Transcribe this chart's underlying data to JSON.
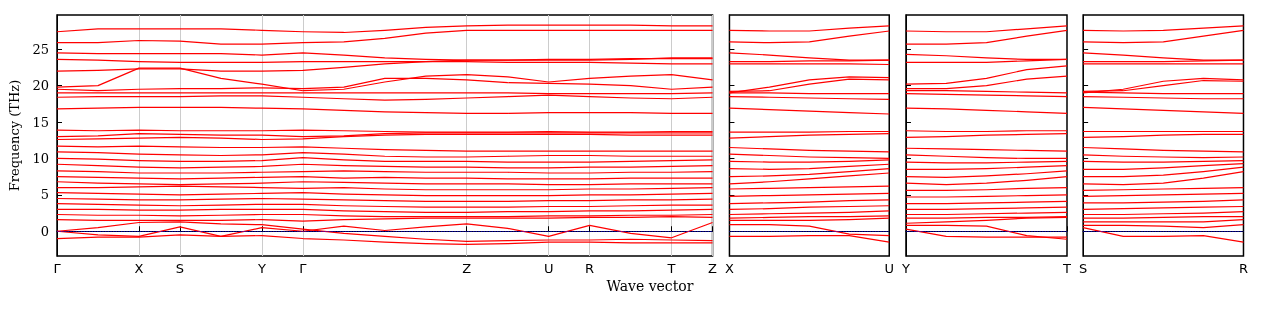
{
  "chart_data": [
    {
      "type": "line",
      "ylabel": "Frequency (THz)",
      "xlabel": "Wave vector",
      "color": "#ff0000",
      "grid": "x",
      "categories": [
        "Γ",
        null,
        "X",
        "S",
        null,
        "Y",
        "Γ",
        null,
        null,
        null,
        "Z",
        null,
        "U",
        "R",
        null,
        "T",
        "Z"
      ],
      "ylim": [
        -3.4,
        29.7
      ],
      "yticks": [
        0,
        5,
        10,
        15,
        20,
        25
      ],
      "ref_lines": [
        {
          "axis": "y",
          "value": 0,
          "color": "#0000ff",
          "line_style": "dotted"
        }
      ],
      "series": [
        {
          "values": [
            27.4,
            27.8,
            27.8,
            27.8,
            27.8,
            27.6,
            27.4,
            27.3,
            27.6,
            28.0,
            28.2,
            28.3,
            28.3,
            28.3,
            28.3,
            28.2,
            28.2
          ]
        },
        {
          "values": [
            25.9,
            25.9,
            26.2,
            26.1,
            25.7,
            25.7,
            25.9,
            26.0,
            26.5,
            27.2,
            27.6,
            27.6,
            27.6,
            27.6,
            27.6,
            27.6,
            27.6
          ]
        },
        {
          "values": [
            24.5,
            24.4,
            24.4,
            24.4,
            24.4,
            24.2,
            24.5,
            24.2,
            23.8,
            23.6,
            23.5,
            23.5,
            23.5,
            23.5,
            23.6,
            23.8,
            23.8
          ]
        },
        {
          "values": [
            23.6,
            23.5,
            23.3,
            23.2,
            23.2,
            23.2,
            23.3,
            23.3,
            23.3,
            23.3,
            23.3,
            23.2,
            23.2,
            23.2,
            23.1,
            23.0,
            23.0
          ]
        },
        {
          "values": [
            22.0,
            22.1,
            22.3,
            22.3,
            22.0,
            22.0,
            22.1,
            22.5,
            23.0,
            23.3,
            23.5,
            23.5,
            23.6,
            23.6,
            23.7,
            23.7,
            23.7
          ]
        },
        {
          "values": [
            19.8,
            20.0,
            22.4,
            22.4,
            21.0,
            20.2,
            19.3,
            19.5,
            20.5,
            21.3,
            21.5,
            21.2,
            20.5,
            21.0,
            21.3,
            21.5,
            20.8
          ]
        },
        {
          "values": [
            19.5,
            19.3,
            19.5,
            19.6,
            19.6,
            19.7,
            19.6,
            19.8,
            21.0,
            21.0,
            20.8,
            20.4,
            20.3,
            20.2,
            20.0,
            19.5,
            19.8
          ]
        },
        {
          "values": [
            19.0,
            19.0,
            19.0,
            19.0,
            19.0,
            19.0,
            19.0,
            19.0,
            19.0,
            19.0,
            19.0,
            19.0,
            18.9,
            18.9,
            18.9,
            18.9,
            19.0
          ]
        },
        {
          "values": [
            18.4,
            18.5,
            18.5,
            18.5,
            18.6,
            18.6,
            18.4,
            18.2,
            18.0,
            18.1,
            18.3,
            18.5,
            18.7,
            18.5,
            18.3,
            18.2,
            18.4
          ]
        },
        {
          "values": [
            16.8,
            16.9,
            17.0,
            17.0,
            17.0,
            16.9,
            16.8,
            16.6,
            16.4,
            16.3,
            16.2,
            16.2,
            16.3,
            16.3,
            16.3,
            16.2,
            16.2
          ]
        },
        {
          "values": [
            13.9,
            13.8,
            13.9,
            13.8,
            13.8,
            13.8,
            13.9,
            13.8,
            13.7,
            13.6,
            13.6,
            13.6,
            13.7,
            13.6,
            13.6,
            13.7,
            13.7
          ]
        },
        {
          "values": [
            13.0,
            13.1,
            13.4,
            13.3,
            13.2,
            13.2,
            13.0,
            13.1,
            13.4,
            13.5,
            13.5,
            13.5,
            13.5,
            13.5,
            13.5,
            13.5,
            13.5
          ]
        },
        {
          "values": [
            12.6,
            12.7,
            12.8,
            12.9,
            12.8,
            12.6,
            12.7,
            13.0,
            13.2,
            13.3,
            13.3,
            13.3,
            13.3,
            13.3,
            13.2,
            13.2,
            13.2
          ]
        },
        {
          "values": [
            11.7,
            11.6,
            11.7,
            11.6,
            11.5,
            11.5,
            11.6,
            11.4,
            11.2,
            11.1,
            11.0,
            11.0,
            11.0,
            11.0,
            11.0,
            11.0,
            11.0
          ]
        },
        {
          "values": [
            10.9,
            10.8,
            10.6,
            10.5,
            10.4,
            10.5,
            10.8,
            10.6,
            10.3,
            10.2,
            10.2,
            10.3,
            10.4,
            10.4,
            10.3,
            10.3,
            10.3
          ]
        },
        {
          "values": [
            10.0,
            9.9,
            9.7,
            9.6,
            9.6,
            9.7,
            10.1,
            9.8,
            9.6,
            9.6,
            9.6,
            9.5,
            9.5,
            9.5,
            9.6,
            9.7,
            9.8
          ]
        },
        {
          "values": [
            9.2,
            9.0,
            8.8,
            8.7,
            8.8,
            8.9,
            9.2,
            9.0,
            8.9,
            8.8,
            8.8,
            8.7,
            8.7,
            8.8,
            8.8,
            8.9,
            9.0
          ]
        },
        {
          "values": [
            8.3,
            8.2,
            8.0,
            8.0,
            8.0,
            8.1,
            8.2,
            8.3,
            8.2,
            8.1,
            8.1,
            8.1,
            8.0,
            8.0,
            8.1,
            8.1,
            8.2
          ]
        },
        {
          "values": [
            7.5,
            7.4,
            7.3,
            7.2,
            7.3,
            7.4,
            7.5,
            7.3,
            7.4,
            7.3,
            7.3,
            7.2,
            7.2,
            7.2,
            7.3,
            7.3,
            7.3
          ]
        },
        {
          "values": [
            6.8,
            6.6,
            6.5,
            6.4,
            6.5,
            6.6,
            6.8,
            6.7,
            6.6,
            6.5,
            6.5,
            6.5,
            6.4,
            6.4,
            6.5,
            6.5,
            6.5
          ]
        },
        {
          "values": [
            6.0,
            6.0,
            6.1,
            6.2,
            6.1,
            6.0,
            5.9,
            6.0,
            5.8,
            5.7,
            5.7,
            5.7,
            5.7,
            5.8,
            5.8,
            5.9,
            6.0
          ]
        },
        {
          "values": [
            5.3,
            5.2,
            5.1,
            5.0,
            5.1,
            5.2,
            5.3,
            5.1,
            5.0,
            4.9,
            4.9,
            4.9,
            4.9,
            5.0,
            5.0,
            5.1,
            5.2
          ]
        },
        {
          "values": [
            4.5,
            4.4,
            4.3,
            4.3,
            4.4,
            4.5,
            4.4,
            4.3,
            4.2,
            4.1,
            4.1,
            4.1,
            4.2,
            4.2,
            4.3,
            4.3,
            4.4
          ]
        },
        {
          "values": [
            3.8,
            3.7,
            3.6,
            3.5,
            3.6,
            3.7,
            3.7,
            3.5,
            3.4,
            3.3,
            3.3,
            3.3,
            3.4,
            3.4,
            3.5,
            3.6,
            3.6
          ]
        },
        {
          "values": [
            3.0,
            3.0,
            2.9,
            2.9,
            3.0,
            3.0,
            3.0,
            2.8,
            2.7,
            2.6,
            2.6,
            2.7,
            2.7,
            2.8,
            2.8,
            2.9,
            3.0
          ]
        },
        {
          "values": [
            2.3,
            2.2,
            2.2,
            2.1,
            2.2,
            2.3,
            2.3,
            2.1,
            2.0,
            2.0,
            2.0,
            2.0,
            2.1,
            2.1,
            2.2,
            2.2,
            2.3
          ]
        },
        {
          "values": [
            1.6,
            1.5,
            1.5,
            1.5,
            1.5,
            1.6,
            1.4,
            1.6,
            1.7,
            1.8,
            1.8,
            1.8,
            1.8,
            1.9,
            1.9,
            2.0,
            1.9
          ]
        },
        {
          "values": [
            0,
            0.5,
            1.2,
            1.3,
            1.0,
            0.9,
            0.3,
            -0.3,
            -0.7,
            -1.1,
            -1.4,
            -1.3,
            -1.2,
            -1.2,
            -1.1,
            -1.2,
            -1.3
          ]
        },
        {
          "values": [
            0,
            -0.5,
            -0.7,
            0.6,
            -0.7,
            0.5,
            0,
            0.7,
            0.1,
            0.6,
            1.0,
            0.4,
            -0.7,
            0.8,
            -0.3,
            -0.9,
            1.2
          ]
        },
        {
          "values": [
            -1.0,
            -0.8,
            -0.8,
            -0.5,
            -0.7,
            -0.6,
            -1.0,
            -1.2,
            -1.5,
            -1.7,
            -1.8,
            -1.7,
            -1.5,
            -1.5,
            -1.6,
            -1.6,
            -1.6
          ]
        }
      ]
    },
    {
      "type": "line",
      "color": "#ff0000",
      "tick_labels": "x",
      "categories": [
        "X",
        null,
        null,
        null,
        "U"
      ],
      "ylim": [
        -3.4,
        29.7
      ],
      "yticks": [
        0,
        5,
        10,
        15,
        20,
        25
      ],
      "ref_lines": [
        {
          "axis": "y",
          "value": 0,
          "color": "#0000ff",
          "line_style": "dotted"
        }
      ],
      "series": [
        {
          "values": [
            27.6,
            27.5,
            27.5,
            27.9,
            28.2
          ]
        },
        {
          "values": [
            26.0,
            25.9,
            26.0,
            26.8,
            27.5
          ]
        },
        {
          "values": [
            24.5,
            24.2,
            23.8,
            23.5,
            23.5
          ]
        },
        {
          "values": [
            23.3,
            23.3,
            23.4,
            23.4,
            23.5
          ]
        },
        {
          "values": [
            23.0,
            23.0,
            23.0,
            23.0,
            22.9
          ]
        },
        {
          "values": [
            19.0,
            19.8,
            20.8,
            21.2,
            21.1
          ]
        },
        {
          "values": [
            19.2,
            19.3,
            20.2,
            20.9,
            20.8
          ]
        },
        {
          "values": [
            19.0,
            19.0,
            18.9,
            18.9,
            18.9
          ]
        },
        {
          "values": [
            18.5,
            18.4,
            18.3,
            18.2,
            18.1
          ]
        },
        {
          "values": [
            16.9,
            16.7,
            16.5,
            16.3,
            16.1
          ]
        },
        {
          "values": [
            13.6,
            13.6,
            13.6,
            13.7,
            13.7
          ]
        },
        {
          "values": [
            12.8,
            13.0,
            13.2,
            13.3,
            13.4
          ]
        },
        {
          "values": [
            11.5,
            11.3,
            11.1,
            11.0,
            10.9
          ]
        },
        {
          "values": [
            10.6,
            10.4,
            10.2,
            10.1,
            10.0
          ]
        },
        {
          "values": [
            9.6,
            9.5,
            9.5,
            9.6,
            9.8
          ]
        },
        {
          "values": [
            8.6,
            8.5,
            8.6,
            8.9,
            9.2
          ]
        },
        {
          "values": [
            7.5,
            7.6,
            7.8,
            8.2,
            8.6
          ]
        },
        {
          "values": [
            6.5,
            6.8,
            7.2,
            7.6,
            8.0
          ]
        },
        {
          "values": [
            5.8,
            5.9,
            6.0,
            6.1,
            6.2
          ]
        },
        {
          "values": [
            4.8,
            4.9,
            5.0,
            5.1,
            5.2
          ]
        },
        {
          "values": [
            3.8,
            3.9,
            4.0,
            4.2,
            4.3
          ]
        },
        {
          "values": [
            3.0,
            3.1,
            3.3,
            3.4,
            3.5
          ]
        },
        {
          "values": [
            2.3,
            2.4,
            2.5,
            2.6,
            2.8
          ]
        },
        {
          "values": [
            1.8,
            1.9,
            2.0,
            2.0,
            2.1
          ]
        },
        {
          "values": [
            1.5,
            1.5,
            1.5,
            1.6,
            1.8
          ]
        },
        {
          "values": [
            0.9,
            0.9,
            0.7,
            -0.4,
            -0.6
          ]
        },
        {
          "values": [
            -0.7,
            -0.7,
            -0.6,
            -0.6,
            -1.5
          ]
        }
      ]
    },
    {
      "type": "line",
      "color": "#ff0000",
      "tick_labels": "x",
      "categories": [
        "Y",
        null,
        null,
        null,
        "T"
      ],
      "ylim": [
        -3.4,
        29.7
      ],
      "yticks": [
        0,
        5,
        10,
        15,
        20,
        25
      ],
      "ref_lines": [
        {
          "axis": "y",
          "value": 0,
          "color": "#0000ff",
          "line_style": "dotted"
        }
      ],
      "series": [
        {
          "values": [
            27.5,
            27.4,
            27.4,
            27.8,
            28.2
          ]
        },
        {
          "values": [
            25.7,
            25.7,
            25.9,
            26.8,
            27.6
          ]
        },
        {
          "values": [
            24.3,
            24.1,
            23.8,
            23.6,
            23.6
          ]
        },
        {
          "values": [
            23.2,
            23.2,
            23.2,
            23.4,
            23.6
          ]
        },
        {
          "values": [
            20.2,
            20.3,
            21.0,
            22.2,
            22.7
          ]
        },
        {
          "values": [
            19.6,
            19.6,
            20.0,
            20.9,
            21.3
          ]
        },
        {
          "values": [
            19.3,
            19.3,
            19.2,
            19.1,
            19.0
          ]
        },
        {
          "values": [
            18.9,
            18.8,
            18.7,
            18.6,
            18.5
          ]
        },
        {
          "values": [
            16.9,
            16.8,
            16.6,
            16.4,
            16.2
          ]
        },
        {
          "values": [
            13.8,
            13.7,
            13.7,
            13.8,
            13.8
          ]
        },
        {
          "values": [
            12.9,
            13.0,
            13.2,
            13.3,
            13.4
          ]
        },
        {
          "values": [
            11.4,
            11.3,
            11.2,
            11.1,
            11.0
          ]
        },
        {
          "values": [
            10.5,
            10.3,
            10.1,
            10.0,
            10.0
          ]
        },
        {
          "values": [
            9.5,
            9.4,
            9.4,
            9.5,
            9.6
          ]
        },
        {
          "values": [
            8.5,
            8.5,
            8.6,
            8.8,
            9.0
          ]
        },
        {
          "values": [
            7.5,
            7.4,
            7.6,
            7.9,
            8.3
          ]
        },
        {
          "values": [
            6.6,
            6.4,
            6.6,
            7.0,
            7.5
          ]
        },
        {
          "values": [
            5.6,
            5.6,
            5.7,
            5.9,
            6.0
          ]
        },
        {
          "values": [
            4.7,
            4.7,
            4.8,
            4.9,
            5.0
          ]
        },
        {
          "values": [
            3.8,
            3.8,
            3.9,
            4.0,
            4.1
          ]
        },
        {
          "values": [
            3.0,
            3.0,
            3.1,
            3.2,
            3.3
          ]
        },
        {
          "values": [
            2.3,
            2.3,
            2.4,
            2.5,
            2.6
          ]
        },
        {
          "values": [
            1.8,
            1.8,
            1.9,
            1.9,
            2.0
          ]
        },
        {
          "values": [
            1.1,
            1.3,
            1.5,
            1.8,
            1.9
          ]
        },
        {
          "values": [
            0.8,
            0.8,
            0.7,
            -0.6,
            -1.1
          ]
        },
        {
          "values": [
            0.3,
            -0.7,
            -0.8,
            -0.8,
            -0.8
          ]
        }
      ]
    },
    {
      "type": "line",
      "color": "#ff0000",
      "tick_labels": "x",
      "categories": [
        "S",
        null,
        null,
        null,
        "R"
      ],
      "ylim": [
        -3.4,
        29.7
      ],
      "yticks": [
        0,
        5,
        10,
        15,
        20,
        25
      ],
      "ref_lines": [
        {
          "axis": "y",
          "value": 0,
          "color": "#0000ff",
          "line_style": "dotted"
        }
      ],
      "series": [
        {
          "values": [
            27.6,
            27.5,
            27.6,
            27.9,
            28.2
          ]
        },
        {
          "values": [
            26.0,
            25.9,
            26.0,
            26.8,
            27.6
          ]
        },
        {
          "values": [
            24.5,
            24.2,
            23.8,
            23.5,
            23.5
          ]
        },
        {
          "values": [
            23.3,
            23.3,
            23.3,
            23.4,
            23.5
          ]
        },
        {
          "values": [
            23.0,
            23.0,
            23.0,
            23.0,
            23.0
          ]
        },
        {
          "values": [
            19.0,
            19.5,
            20.6,
            21.0,
            20.8
          ]
        },
        {
          "values": [
            19.2,
            19.3,
            20.0,
            20.7,
            20.6
          ]
        },
        {
          "values": [
            19.1,
            19.0,
            18.9,
            18.9,
            18.9
          ]
        },
        {
          "values": [
            18.5,
            18.4,
            18.3,
            18.2,
            18.2
          ]
        },
        {
          "values": [
            17.0,
            16.8,
            16.6,
            16.4,
            16.2
          ]
        },
        {
          "values": [
            13.7,
            13.7,
            13.7,
            13.7,
            13.7
          ]
        },
        {
          "values": [
            12.9,
            13.0,
            13.2,
            13.3,
            13.3
          ]
        },
        {
          "values": [
            11.5,
            11.3,
            11.1,
            11.0,
            10.9
          ]
        },
        {
          "values": [
            10.5,
            10.3,
            10.2,
            10.1,
            10.2
          ]
        },
        {
          "values": [
            9.6,
            9.5,
            9.5,
            9.6,
            9.7
          ]
        },
        {
          "values": [
            8.5,
            8.5,
            8.7,
            9.0,
            9.3
          ]
        },
        {
          "values": [
            7.5,
            7.5,
            7.7,
            8.2,
            8.8
          ]
        },
        {
          "values": [
            6.5,
            6.4,
            6.6,
            7.3,
            8.2
          ]
        },
        {
          "values": [
            5.6,
            5.7,
            5.8,
            5.9,
            6.0
          ]
        },
        {
          "values": [
            4.8,
            4.9,
            5.0,
            5.1,
            5.2
          ]
        },
        {
          "values": [
            3.9,
            3.9,
            4.0,
            4.1,
            4.3
          ]
        },
        {
          "values": [
            3.0,
            3.1,
            3.2,
            3.3,
            3.4
          ]
        },
        {
          "values": [
            2.3,
            2.3,
            2.4,
            2.5,
            2.7
          ]
        },
        {
          "values": [
            1.8,
            1.8,
            1.9,
            2.0,
            2.0
          ]
        },
        {
          "values": [
            1.3,
            1.3,
            1.3,
            1.3,
            1.6
          ]
        },
        {
          "values": [
            0.8,
            0.8,
            0.7,
            0.5,
            0.9
          ]
        },
        {
          "values": [
            0.5,
            -0.7,
            -0.7,
            -0.6,
            -1.5
          ]
        }
      ]
    }
  ]
}
